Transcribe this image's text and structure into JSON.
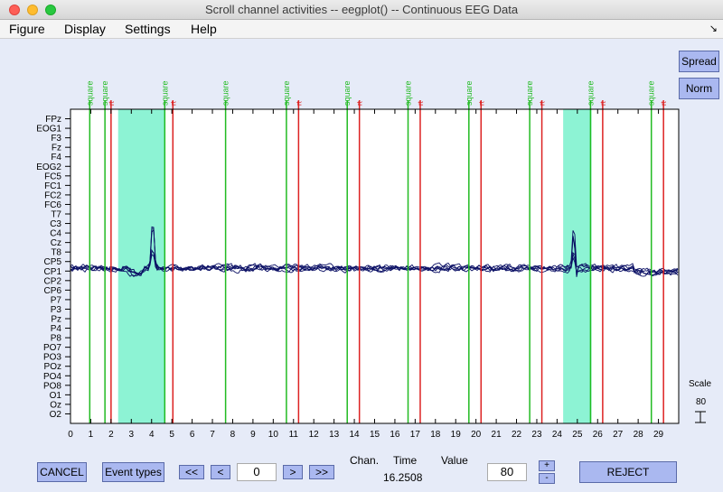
{
  "window": {
    "title": "Scroll channel activities -- eegplot() -- Continuous EEG Data"
  },
  "menu": [
    "Figure",
    "Display",
    "Settings",
    "Help"
  ],
  "buttons": {
    "spread": "Spread",
    "norm": "Norm",
    "cancel": "CANCEL",
    "event_types": "Event types",
    "nav_first": "<<",
    "nav_prev": "<",
    "nav_next": ">",
    "nav_last": ">>",
    "plus": "+",
    "minus": "-",
    "reject": "REJECT"
  },
  "scale": {
    "label": "Scale",
    "value": "80"
  },
  "nav": {
    "position": "0"
  },
  "readout": {
    "chan_label": "Chan.",
    "time_label": "Time",
    "value_label": "Value",
    "time_value": "16.2508"
  },
  "value_box": "80",
  "colors": {
    "background": "#e6ebf8",
    "square_event": "#22bb22",
    "rt_event": "#dd2222",
    "rejected_region": "#8df3d4",
    "eeg_trace": "#0b1065",
    "button": "#aab8f0"
  },
  "plot": {
    "xlim": [
      0,
      30
    ],
    "xticks": [
      0,
      1,
      2,
      3,
      4,
      5,
      6,
      7,
      8,
      9,
      10,
      11,
      12,
      13,
      14,
      15,
      16,
      17,
      18,
      19,
      20,
      21,
      22,
      23,
      24,
      25,
      26,
      27,
      28,
      29
    ],
    "channels": [
      "FPz",
      "EOG1",
      "F3",
      "Fz",
      "F4",
      "EOG2",
      "FC5",
      "FC1",
      "FC2",
      "FC6",
      "T7",
      "C3",
      "C4",
      "Cz",
      "T8",
      "CP5",
      "CP1",
      "CP2",
      "CP6",
      "P7",
      "P3",
      "Pz",
      "P4",
      "P8",
      "PO7",
      "PO3",
      "POz",
      "PO4",
      "PO8",
      "O1",
      "Oz",
      "O2"
    ],
    "rejected_regions": [
      [
        2.35,
        4.65
      ],
      [
        24.3,
        25.7
      ]
    ],
    "events": [
      {
        "type": "square",
        "time": 0.95
      },
      {
        "type": "square",
        "time": 1.7
      },
      {
        "type": "rt",
        "time": 2.0
      },
      {
        "type": "square",
        "time": 4.65
      },
      {
        "type": "rt",
        "time": 5.05
      },
      {
        "type": "square",
        "time": 7.65
      },
      {
        "type": "square",
        "time": 10.65
      },
      {
        "type": "rt",
        "time": 11.25
      },
      {
        "type": "square",
        "time": 13.65
      },
      {
        "type": "rt",
        "time": 14.25
      },
      {
        "type": "square",
        "time": 16.65
      },
      {
        "type": "rt",
        "time": 17.25
      },
      {
        "type": "square",
        "time": 19.65
      },
      {
        "type": "rt",
        "time": 20.25
      },
      {
        "type": "square",
        "time": 22.65
      },
      {
        "type": "rt",
        "time": 23.25
      },
      {
        "type": "square",
        "time": 25.65
      },
      {
        "type": "rt",
        "time": 26.25
      },
      {
        "type": "square",
        "time": 28.65
      },
      {
        "type": "rt",
        "time": 29.25
      }
    ]
  }
}
